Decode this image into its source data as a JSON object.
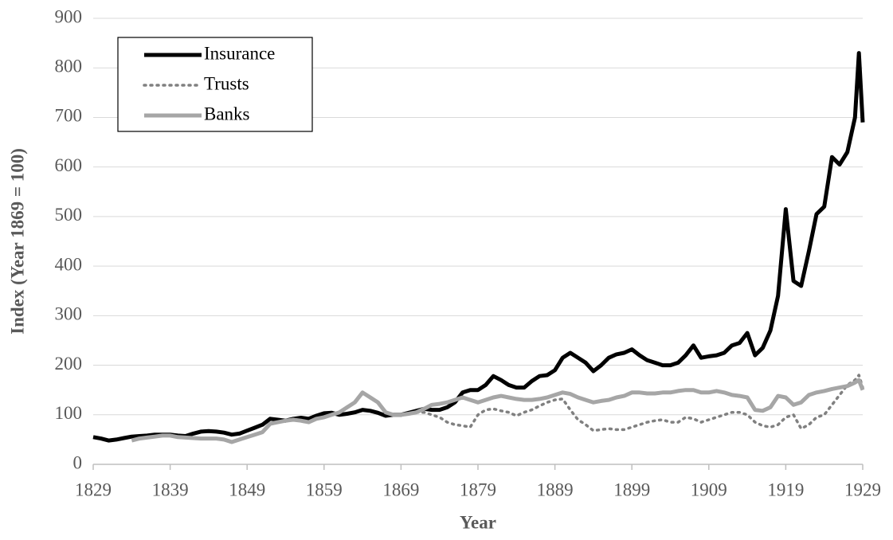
{
  "chart_data": {
    "type": "line",
    "x_label": "Year",
    "y_label": "Index (Year 1869 = 100)",
    "x": [
      1829,
      1830,
      1831,
      1832,
      1833,
      1834,
      1835,
      1836,
      1837,
      1838,
      1839,
      1840,
      1841,
      1842,
      1843,
      1844,
      1845,
      1846,
      1847,
      1848,
      1849,
      1850,
      1851,
      1852,
      1853,
      1854,
      1855,
      1856,
      1857,
      1858,
      1859,
      1860,
      1861,
      1862,
      1863,
      1864,
      1865,
      1866,
      1867,
      1868,
      1869,
      1870,
      1871,
      1872,
      1873,
      1874,
      1875,
      1876,
      1877,
      1878,
      1879,
      1880,
      1881,
      1882,
      1883,
      1884,
      1885,
      1886,
      1887,
      1888,
      1889,
      1890,
      1891,
      1892,
      1893,
      1894,
      1895,
      1896,
      1897,
      1898,
      1899,
      1900,
      1901,
      1902,
      1903,
      1904,
      1905,
      1906,
      1907,
      1908,
      1909,
      1910,
      1911,
      1912,
      1913,
      1914,
      1915,
      1916,
      1917,
      1918,
      1919,
      1920,
      1921,
      1922,
      1923,
      1924,
      1925,
      1926,
      1927,
      1928,
      1928.5,
      1929
    ],
    "series": [
      {
        "name": "Insurance",
        "color": "#000000",
        "dash": "solid",
        "width": 5,
        "values": [
          55,
          52,
          48,
          50,
          53,
          56,
          57,
          58,
          60,
          60,
          60,
          58,
          57,
          62,
          66,
          67,
          66,
          64,
          60,
          62,
          68,
          74,
          80,
          92,
          90,
          88,
          92,
          94,
          92,
          98,
          103,
          104,
          100,
          102,
          105,
          110,
          108,
          104,
          98,
          100,
          100,
          104,
          108,
          112,
          110,
          110,
          115,
          125,
          145,
          150,
          150,
          160,
          178,
          170,
          160,
          155,
          155,
          168,
          178,
          180,
          190,
          215,
          225,
          215,
          205,
          188,
          200,
          215,
          222,
          225,
          232,
          220,
          210,
          205,
          200,
          200,
          205,
          220,
          240,
          215,
          218,
          220,
          225,
          240,
          245,
          265,
          220,
          235,
          270,
          340,
          515,
          370,
          360,
          430,
          505,
          520,
          620,
          605,
          630,
          700,
          830,
          690
        ]
      },
      {
        "name": "Trusts",
        "color": "#808080",
        "dash": "dotted",
        "width": 3.5,
        "values": [
          null,
          null,
          null,
          null,
          null,
          null,
          null,
          null,
          null,
          null,
          null,
          null,
          null,
          null,
          null,
          null,
          null,
          null,
          null,
          null,
          null,
          null,
          null,
          null,
          null,
          null,
          null,
          null,
          null,
          null,
          null,
          null,
          null,
          null,
          null,
          null,
          null,
          null,
          null,
          null,
          null,
          null,
          105,
          105,
          100,
          95,
          85,
          80,
          78,
          75,
          100,
          110,
          112,
          108,
          105,
          98,
          105,
          110,
          118,
          125,
          130,
          132,
          110,
          90,
          80,
          68,
          70,
          72,
          70,
          70,
          75,
          80,
          85,
          88,
          90,
          85,
          85,
          95,
          92,
          85,
          90,
          95,
          100,
          105,
          105,
          100,
          85,
          78,
          75,
          80,
          95,
          100,
          72,
          80,
          95,
          100,
          120,
          140,
          160,
          170,
          180,
          155
        ]
      },
      {
        "name": "Banks",
        "color": "#a6a6a6",
        "dash": "solid",
        "width": 5,
        "values": [
          null,
          null,
          null,
          null,
          null,
          48,
          52,
          54,
          56,
          58,
          58,
          55,
          54,
          53,
          52,
          52,
          52,
          50,
          45,
          50,
          55,
          60,
          65,
          82,
          85,
          88,
          90,
          88,
          85,
          92,
          95,
          100,
          105,
          115,
          125,
          145,
          135,
          125,
          105,
          100,
          100,
          102,
          105,
          112,
          120,
          122,
          125,
          130,
          135,
          130,
          125,
          130,
          135,
          138,
          135,
          132,
          130,
          130,
          132,
          135,
          140,
          145,
          142,
          135,
          130,
          125,
          128,
          130,
          135,
          138,
          145,
          145,
          143,
          143,
          145,
          145,
          148,
          150,
          150,
          145,
          145,
          148,
          145,
          140,
          138,
          135,
          110,
          108,
          115,
          138,
          135,
          120,
          125,
          140,
          145,
          148,
          152,
          155,
          158,
          165,
          170,
          150
        ]
      }
    ],
    "xlim": [
      1829,
      1929
    ],
    "xticks": [
      1829,
      1839,
      1849,
      1859,
      1869,
      1879,
      1889,
      1899,
      1909,
      1919,
      1929
    ],
    "ylim": [
      0,
      900
    ],
    "yticks": [
      0,
      100,
      200,
      300,
      400,
      500,
      600,
      700,
      800,
      900
    ],
    "grid": true,
    "legend": "top-left"
  }
}
